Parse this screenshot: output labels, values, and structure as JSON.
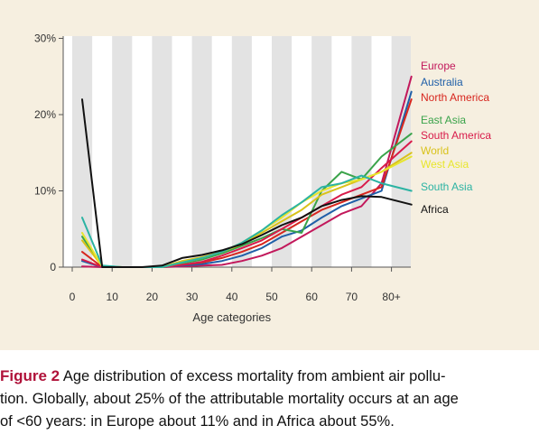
{
  "chart_data": {
    "type": "line",
    "xlabel": "Age categories",
    "ylabel": "",
    "x_ticks": [
      "0",
      "10",
      "20",
      "30",
      "40",
      "50",
      "60",
      "70",
      "80+"
    ],
    "y_ticks": [
      "0",
      "10%",
      "20%",
      "30%"
    ],
    "xlim": [
      -2,
      90
    ],
    "ylim": [
      0,
      30
    ],
    "grid": "alternating vertical bands",
    "x": [
      2.5,
      7.5,
      12.5,
      17.5,
      22.5,
      27.5,
      32.5,
      37.5,
      42.5,
      47.5,
      52.5,
      57.5,
      62.5,
      67.5,
      72.5,
      77.5,
      85
    ],
    "series": [
      {
        "name": "Europe",
        "color": "#c2185b",
        "values": [
          0.1,
          0.0,
          0.0,
          0.0,
          0.0,
          0.1,
          0.2,
          0.3,
          0.8,
          1.5,
          2.5,
          4.0,
          5.5,
          7.0,
          8.0,
          11.0,
          25.0
        ]
      },
      {
        "name": "Australia",
        "color": "#1f5fa8",
        "values": [
          0.8,
          0.0,
          0.0,
          0.0,
          0.0,
          0.2,
          0.4,
          0.8,
          1.5,
          2.5,
          4.0,
          4.8,
          6.5,
          8.0,
          9.0,
          10.0,
          23.0
        ]
      },
      {
        "name": "North America",
        "color": "#d7261e",
        "values": [
          2.0,
          0.0,
          0.0,
          0.0,
          0.0,
          0.3,
          0.6,
          1.2,
          2.0,
          3.0,
          4.5,
          6.0,
          7.5,
          8.5,
          9.5,
          10.5,
          22.0
        ]
      },
      {
        "name": "East Asia",
        "color": "#3aa34a",
        "values": [
          4.0,
          0.1,
          0.0,
          0.0,
          0.0,
          0.5,
          1.0,
          1.8,
          2.8,
          3.8,
          5.0,
          4.5,
          10.0,
          12.5,
          11.5,
          14.5,
          17.5
        ]
      },
      {
        "name": "South America",
        "color": "#d81b4a",
        "values": [
          1.0,
          0.0,
          0.0,
          0.0,
          0.0,
          0.3,
          0.7,
          1.5,
          2.5,
          3.5,
          5.0,
          6.5,
          8.0,
          9.5,
          10.5,
          13.0,
          16.5
        ]
      },
      {
        "name": "World",
        "color": "#d9c21a",
        "values": [
          3.5,
          0.1,
          0.0,
          0.0,
          0.0,
          0.8,
          1.3,
          2.0,
          3.0,
          4.5,
          6.0,
          7.5,
          9.5,
          10.5,
          11.5,
          12.5,
          15.0
        ]
      },
      {
        "name": "West Asia",
        "color": "#e8e62c",
        "values": [
          4.5,
          0.1,
          0.0,
          0.0,
          0.0,
          0.6,
          1.2,
          2.0,
          3.2,
          4.8,
          6.5,
          8.5,
          10.0,
          11.0,
          11.5,
          12.5,
          14.5
        ]
      },
      {
        "name": "South Asia",
        "color": "#2bb3a3",
        "values": [
          6.5,
          0.2,
          0.0,
          0.0,
          0.0,
          0.6,
          1.2,
          2.0,
          3.2,
          4.8,
          6.8,
          8.5,
          10.5,
          11.0,
          12.0,
          11.0,
          10.0
        ]
      },
      {
        "name": "Africa",
        "color": "#111111",
        "values": [
          22.0,
          0.0,
          0.0,
          0.0,
          0.2,
          1.2,
          1.6,
          2.2,
          3.0,
          4.2,
          5.5,
          6.5,
          8.0,
          8.8,
          9.3,
          9.2,
          8.2
        ]
      }
    ]
  },
  "caption": {
    "label": "Figure 2",
    "lines": [
      "Age distribution of excess mortality from ambient air pollu-",
      "tion. Globally, about 25% of the attributable mortality occurs at an age",
      "of <60 years: in Europe about 11% and in Africa about 55%."
    ]
  }
}
